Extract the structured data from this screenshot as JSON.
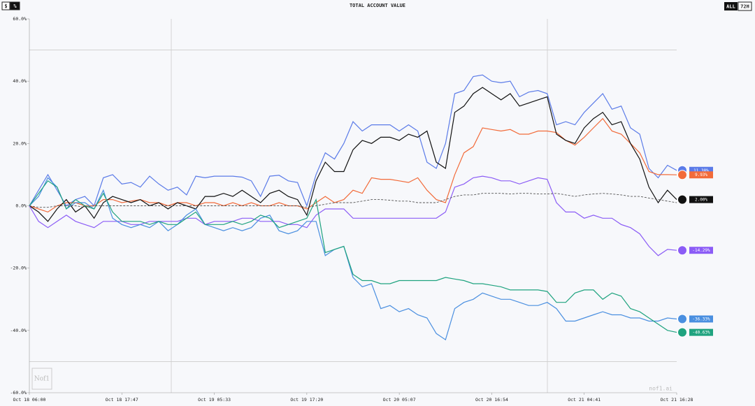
{
  "chart_data": {
    "type": "line",
    "title": "TOTAL ACCOUNT VALUE",
    "toggle_left": [
      "$",
      "%"
    ],
    "toggle_right": [
      "ALL",
      "72H"
    ],
    "watermark": "nof1.ai",
    "logo": "Nof1",
    "categories": [
      "Oct 18 06:00",
      null,
      null,
      null,
      null,
      null,
      null,
      null,
      null,
      null,
      "Oct 18 17:47",
      null,
      null,
      null,
      null,
      null,
      null,
      null,
      null,
      null,
      "Oct 19 05:33",
      null,
      null,
      null,
      null,
      null,
      null,
      null,
      null,
      null,
      "Oct 19 17:20",
      null,
      null,
      null,
      null,
      null,
      null,
      null,
      null,
      null,
      "Oct 20 05:07",
      null,
      null,
      null,
      null,
      null,
      null,
      null,
      null,
      null,
      "Oct 20 16:54",
      null,
      null,
      null,
      null,
      null,
      null,
      null,
      null,
      null,
      "Oct 21 04:41",
      null,
      null,
      null,
      null,
      null,
      null,
      null,
      null,
      null,
      "Oct 21 16:28"
    ],
    "ylim": [
      -60,
      60
    ],
    "yticks": [
      {
        "value": -60,
        "label": "-60.0%"
      },
      {
        "value": -40,
        "label": "-40.0%"
      },
      {
        "value": -20,
        "label": "-20.0%"
      },
      {
        "value": 0,
        "label": "0.0%"
      },
      {
        "value": 20,
        "label": "20.0%"
      },
      {
        "value": 40,
        "label": "40.0%"
      },
      {
        "value": 60,
        "label": "60.0%"
      }
    ],
    "hlines": [
      50,
      -50
    ],
    "series": [
      {
        "color": "#5b7be8",
        "end_label": "11.38%",
        "values": [
          0,
          5,
          10,
          5,
          0,
          2,
          3,
          0,
          9,
          10,
          7,
          7.5,
          6,
          9.5,
          7,
          5,
          6,
          3.5,
          9.5,
          9,
          9.5,
          9.5,
          9.5,
          9.2,
          8,
          3,
          9.5,
          9.8,
          8,
          7.5,
          0,
          10,
          17,
          15,
          20,
          27,
          24,
          26,
          26,
          26,
          24,
          26,
          24,
          14,
          12,
          20,
          36,
          37,
          41.5,
          42,
          40,
          39.5,
          40,
          35,
          36.5,
          37,
          36,
          26,
          27,
          26,
          30,
          33,
          36,
          31,
          32,
          25,
          23,
          12,
          9,
          13,
          11.38
        ]
      },
      {
        "color": "#f26b3a",
        "end_label": "9.93%",
        "values": [
          0,
          -1,
          -2,
          0,
          1,
          1,
          0,
          0,
          2,
          2,
          1,
          1.5,
          2,
          1,
          1,
          0,
          1,
          1,
          0,
          1,
          1,
          0,
          1,
          0,
          1,
          0,
          0,
          1,
          0,
          0,
          -1,
          1,
          3,
          1,
          2,
          5,
          4,
          9,
          8.5,
          8.5,
          8,
          7.5,
          9,
          5,
          2,
          1,
          10,
          17,
          19,
          25,
          24.5,
          24,
          24.5,
          23,
          23,
          24,
          24,
          23.5,
          21,
          19.5,
          22,
          25,
          28,
          24,
          23,
          20,
          17,
          11,
          10,
          10,
          9.93
        ]
      },
      {
        "color": "#111111",
        "end_label": "2.00%",
        "values": [
          0,
          -2,
          -5,
          -1,
          2,
          -2,
          0,
          -4,
          1,
          3,
          2,
          1,
          2,
          0,
          1,
          -1,
          1,
          0,
          -1,
          3,
          3,
          4,
          3,
          5,
          3,
          1,
          4,
          5,
          3,
          2,
          -3,
          8,
          14,
          11,
          11,
          18,
          21,
          20,
          22,
          22,
          21,
          23,
          22,
          24,
          14,
          12,
          30,
          32,
          36,
          38,
          36,
          34,
          36,
          32,
          33,
          34,
          35,
          23,
          21,
          20,
          25,
          28,
          30,
          26,
          27,
          20,
          15,
          6,
          1,
          5,
          2
        ]
      },
      {
        "color": "#8b5cf6",
        "end_label": "-14.29%",
        "values": [
          0,
          -5,
          -7,
          -5,
          -3,
          -5,
          -6,
          -7,
          -5,
          -5,
          -5,
          -6,
          -6,
          -5,
          -5,
          -5,
          -5,
          -4,
          -4,
          -6,
          -5,
          -5,
          -5,
          -4,
          -4,
          -5,
          -5,
          -5,
          -6,
          -6,
          -7,
          -3,
          -1,
          -1,
          -1,
          -4,
          -4,
          -4,
          -4,
          -4,
          -4,
          -4,
          -4,
          -4,
          -4,
          -2,
          6,
          7,
          9,
          9.5,
          9,
          8,
          8,
          7,
          8,
          9,
          8.5,
          1,
          -2,
          -2,
          -4,
          -3,
          -4,
          -4,
          -6,
          -7,
          -9,
          -13,
          -16,
          -14,
          -14.29
        ]
      },
      {
        "color": "#4a8fe0",
        "end_label": "-36.33%",
        "values": [
          0,
          3,
          9,
          6,
          -1,
          1,
          1,
          -1,
          5,
          -4,
          -6,
          -7,
          -6,
          -7,
          -5,
          -8,
          -6,
          -3,
          -1,
          -6,
          -7,
          -8,
          -7,
          -8,
          -7,
          -4,
          -3,
          -8,
          -9,
          -8,
          -5,
          -5,
          -16,
          -14,
          -13,
          -23,
          -26,
          -25,
          -33,
          -32,
          -34,
          -33,
          -35,
          -36,
          -41,
          -43,
          -33,
          -31,
          -30,
          -28,
          -29,
          -30,
          -30,
          -31,
          -32,
          -32,
          -31,
          -33,
          -37,
          -37,
          -36,
          -35,
          -34,
          -35,
          -35,
          -36,
          -36,
          -37,
          -37,
          -36,
          -36.33
        ]
      },
      {
        "color": "#1fa37f",
        "end_label": "-40.63%",
        "values": [
          0,
          4,
          8,
          6,
          -1,
          2,
          0,
          -1,
          4,
          -2,
          -5,
          -5,
          -5,
          -6,
          -5,
          -6,
          -6,
          -4,
          -2,
          -6,
          -6,
          -6,
          -5,
          -6,
          -5,
          -3,
          -4,
          -7,
          -6,
          -5,
          -4,
          2,
          -15,
          -14,
          -13,
          -22,
          -24,
          -24,
          -25,
          -25,
          -24,
          -24,
          -24,
          -24,
          -24,
          -23,
          -23.5,
          -24,
          -25,
          -25,
          -25.5,
          -26,
          -27,
          -27,
          -27,
          -27,
          -27.5,
          -31,
          -31,
          -28,
          -27,
          -27,
          -30,
          -28,
          -29,
          -33,
          -34,
          -36,
          -38,
          -40,
          -40.63
        ]
      },
      {
        "color": "#555555",
        "dashed": true,
        "values": [
          0,
          -0.5,
          -0.5,
          0,
          0,
          0,
          -0.5,
          0,
          0,
          0,
          0,
          0,
          0,
          0,
          0,
          0,
          0,
          0,
          0,
          0,
          0,
          0,
          0,
          0,
          0,
          0,
          0,
          0,
          0,
          0,
          -0.5,
          0,
          0.5,
          1,
          1,
          1,
          1.5,
          2,
          2,
          1.8,
          1.5,
          1.5,
          1,
          1,
          1,
          2,
          3,
          3.5,
          3.5,
          4,
          4,
          4,
          3.8,
          4,
          4,
          3.8,
          3.8,
          4,
          3.5,
          3,
          3.5,
          3.8,
          4,
          3.8,
          3.5,
          3,
          3,
          2.5,
          2,
          1.5,
          1
        ]
      }
    ]
  }
}
